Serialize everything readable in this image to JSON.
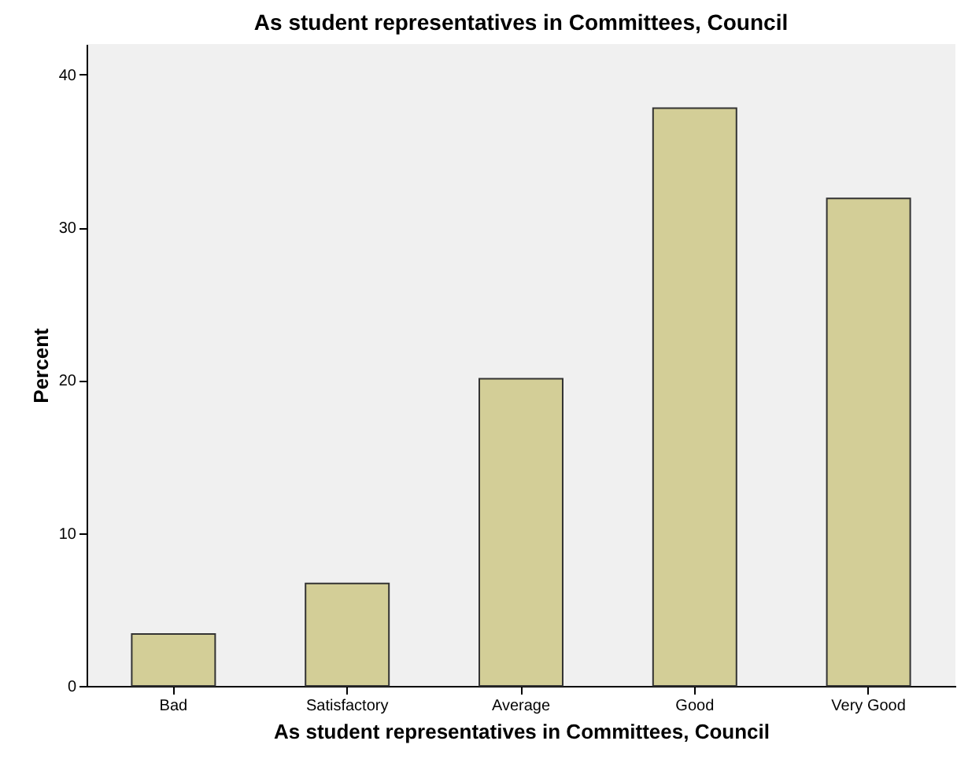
{
  "chart_data": {
    "type": "bar",
    "title": "As student representatives in Committees, Council",
    "xlabel": "As student representatives in Committees, Council",
    "ylabel": "Percent",
    "categories": [
      "Bad",
      "Satisfactory",
      "Average",
      "Good",
      "Very Good"
    ],
    "values": [
      3.4,
      6.7,
      20.1,
      37.8,
      31.9
    ],
    "color": "#d3ce97",
    "ylim": [
      0,
      42
    ],
    "yticks": [
      0,
      10,
      20,
      30,
      40
    ],
    "grid": false
  }
}
